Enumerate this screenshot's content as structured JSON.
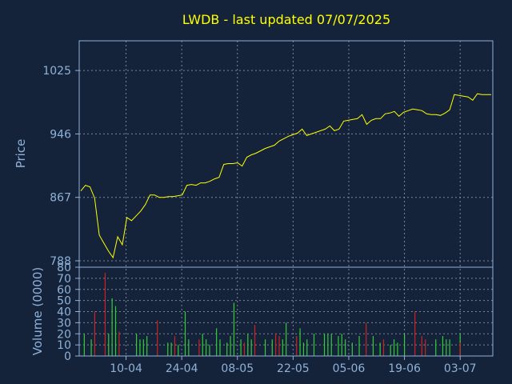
{
  "chart_data": [
    {
      "type": "line",
      "title": "LWDB - last updated 07/07/2025",
      "ylabel": "Price",
      "ylim": [
        780,
        1062
      ],
      "yticks": [
        788,
        867,
        946,
        1025
      ],
      "grid": true,
      "colors": {
        "background": "#14233a",
        "line": "#ffff00",
        "axis": "#8fb2d8"
      },
      "series": [
        {
          "values": [
            875,
            882,
            880,
            866,
            820,
            810,
            800,
            792,
            818,
            808,
            842,
            838,
            844,
            850,
            858,
            870,
            870,
            867,
            867,
            868,
            868,
            869,
            870,
            882,
            883,
            882,
            885,
            885,
            887,
            890,
            892,
            908,
            909,
            909,
            910,
            906,
            917,
            920,
            922,
            925,
            928,
            930,
            932,
            937,
            940,
            943,
            945,
            947,
            952,
            944,
            946,
            948,
            950,
            952,
            956,
            950,
            952,
            962,
            963,
            964,
            965,
            970,
            958,
            963,
            965,
            965,
            971,
            972,
            974,
            968,
            973,
            975,
            977,
            976,
            975,
            971,
            970,
            970,
            969,
            972,
            976,
            995,
            994,
            993,
            992,
            988,
            996,
            995,
            995,
            995
          ]
        }
      ]
    },
    {
      "type": "bar",
      "ylabel": "Volume (0000)",
      "ylim": [
        0,
        80
      ],
      "yticks": [
        0,
        10,
        20,
        30,
        40,
        50,
        60,
        70,
        80
      ],
      "xticks": [
        "10-04",
        "24-04",
        "08-05",
        "22-05",
        "05-06",
        "19-06",
        "03-07"
      ],
      "xtick_positions": [
        13,
        29,
        45,
        61,
        77,
        93,
        109
      ],
      "grid": true,
      "colors": {
        "up": "#33cc33",
        "down": "#cc2222"
      },
      "series": [
        {
          "name": "up",
          "x": [
            1,
            3,
            8,
            9,
            10,
            16,
            17,
            18,
            19,
            25,
            26,
            28,
            30,
            31,
            35,
            36,
            37,
            39,
            40,
            42,
            43,
            44,
            46,
            48,
            49,
            53,
            55,
            58,
            59,
            63,
            64,
            65,
            67,
            70,
            71,
            72,
            74,
            75,
            76,
            78,
            80,
            84,
            86,
            89,
            90,
            91,
            93,
            102,
            104,
            105,
            106,
            109
          ],
          "values": [
            20,
            15,
            20,
            52,
            45,
            20,
            15,
            15,
            18,
            12,
            12,
            10,
            40,
            15,
            20,
            15,
            10,
            25,
            15,
            12,
            18,
            48,
            15,
            20,
            15,
            15,
            15,
            15,
            30,
            25,
            12,
            15,
            20,
            20,
            20,
            20,
            18,
            20,
            15,
            12,
            18,
            18,
            12,
            10,
            15,
            12,
            20,
            15,
            18,
            15,
            15,
            20
          ]
        },
        {
          "name": "down",
          "x": [
            4,
            7,
            11,
            22,
            27,
            34,
            47,
            50,
            56,
            57,
            62,
            82,
            87,
            96,
            98,
            99,
            109
          ],
          "values": [
            40,
            75,
            22,
            32,
            18,
            15,
            12,
            28,
            20,
            18,
            18,
            30,
            15,
            40,
            18,
            15,
            12
          ]
        }
      ]
    }
  ]
}
